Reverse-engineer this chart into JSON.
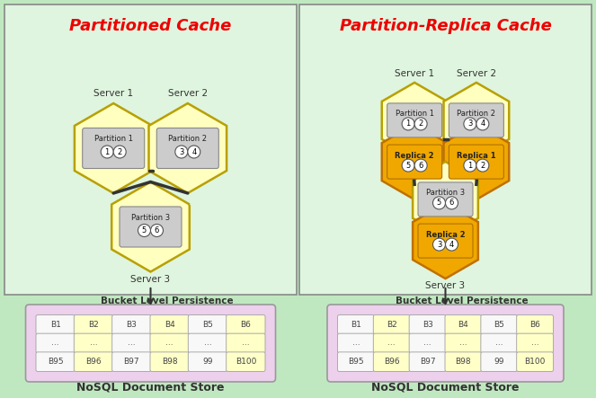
{
  "bg_color": "#c0e8c0",
  "title_left": "Partitioned Cache",
  "title_right": "Partition-Replica Cache",
  "title_color": "#ee0000",
  "title_fontsize": 13,
  "hex_color_yellow": "#ffffc0",
  "hex_color_orange": "#f0a800",
  "hex_edge_color": "#c8b400",
  "hex_edge_lw": 1.8,
  "partition_box_color": "#cccccc",
  "circle_fill": "#ffffff",
  "circle_edge": "#555555",
  "nosql_bg": "#ecd0ec",
  "nosql_border": "#999999",
  "bucket_cell_colors_alt": [
    "#f8f8f8",
    "#ffffc8",
    "#f8f8f8",
    "#ffffc8",
    "#f8f8f8",
    "#ffffc8"
  ],
  "bucket_row1": [
    "B1",
    "B2",
    "B3",
    "B4",
    "B5",
    "B6"
  ],
  "bucket_row2": [
    "...",
    "...",
    "...",
    "...",
    "...",
    "..."
  ],
  "bucket_row3": [
    "B95",
    "B96",
    "B97",
    "B98",
    "99",
    "B100"
  ],
  "server_fontsize": 7.5,
  "partition_label_fontsize": 6,
  "circle_num_fontsize": 6,
  "nosql_label": "NoSQL Document Store",
  "nosql_label_fontsize": 9,
  "bucket_label": "Bucket Level Persistence",
  "bucket_label_fontsize": 7.5,
  "panel_bg": "#dff5df",
  "panel_edge": "#888888"
}
